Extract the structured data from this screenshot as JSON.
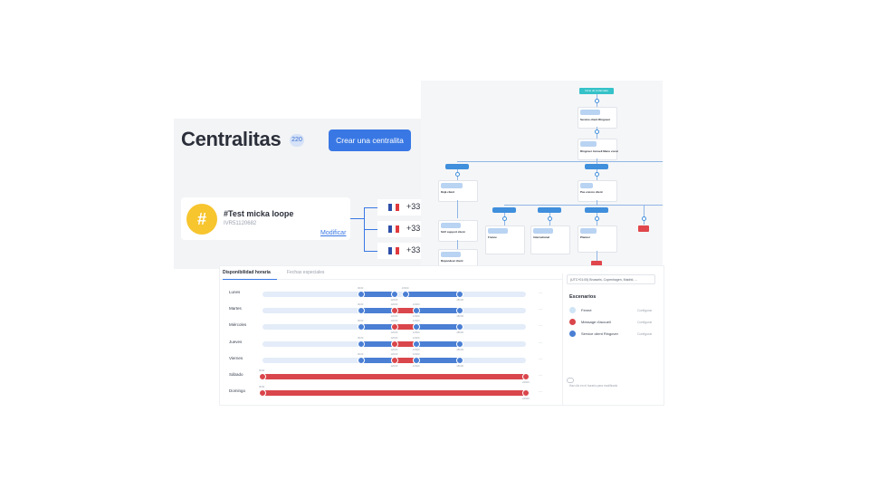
{
  "centralitas": {
    "title": "Centralitas",
    "count": "220",
    "create_button": "Crear una centralita",
    "item": {
      "avatar_symbol": "#",
      "name": "#Test micka loope",
      "id": "IVR51120682",
      "modify_link": "Modificar"
    },
    "numbers": [
      "+33",
      "+33",
      "+33"
    ]
  },
  "flow": {
    "start_label": "Inicio de la llamada",
    "nodes": [
      {
        "title": "Service client Ringover"
      },
      {
        "title": "Ringover Accueil Menu vocal"
      },
      {
        "title": "Déjà client"
      },
      {
        "title": "Pas encore client"
      },
      {
        "title": "SAV support client"
      },
      {
        "title": "France"
      },
      {
        "title": "International"
      },
      {
        "title": "Planner"
      },
      {
        "title": "Répondeur client"
      }
    ]
  },
  "schedule": {
    "tabs": [
      "Disponibilidad horaria",
      "Fechas especiales"
    ],
    "timezone": "(UTC+01:00) Brussels, Copenhagen, Madrid, ...",
    "scenarios_title": "Escenarios",
    "scenarios": [
      {
        "name": "Fermé",
        "color": "#cfe4f5",
        "action": "Configurar"
      },
      {
        "name": "Message d'accueil",
        "color": "#d9464b",
        "action": "Configurar"
      },
      {
        "name": "Service client Ringover",
        "color": "#4a7fd4",
        "action": "Configurar"
      }
    ],
    "hint": "Haz clic en el horario para modificarlo",
    "more": "...",
    "days": [
      {
        "name": "Lunes",
        "segments": [
          {
            "from": "9h00",
            "to": "12h00",
            "scenario": 2
          },
          {
            "from": "13h00",
            "to": "18h00",
            "scenario": 2
          }
        ]
      },
      {
        "name": "Martes",
        "segments": [
          {
            "from": "9h00",
            "to": "12h00",
            "scenario": 2
          },
          {
            "from": "12h00",
            "to": "14h00",
            "scenario": 1
          },
          {
            "from": "14h00",
            "to": "18h00",
            "scenario": 2
          }
        ]
      },
      {
        "name": "Miércoles",
        "segments": [
          {
            "from": "9h00",
            "to": "12h00",
            "scenario": 2
          },
          {
            "from": "12h00",
            "to": "14h00",
            "scenario": 1
          },
          {
            "from": "14h00",
            "to": "18h00",
            "scenario": 2
          }
        ]
      },
      {
        "name": "Jueves",
        "segments": [
          {
            "from": "9h00",
            "to": "12h00",
            "scenario": 2
          },
          {
            "from": "12h00",
            "to": "14h00",
            "scenario": 1
          },
          {
            "from": "14h00",
            "to": "18h00",
            "scenario": 2
          }
        ]
      },
      {
        "name": "Viernes",
        "segments": [
          {
            "from": "9h00",
            "to": "12h00",
            "scenario": 2
          },
          {
            "from": "12h00",
            "to": "14h00",
            "scenario": 1
          },
          {
            "from": "14h00",
            "to": "18h00",
            "scenario": 2
          }
        ]
      },
      {
        "name": "Sábado",
        "segments": [
          {
            "from": "0h00",
            "to": "24h00",
            "scenario": 1
          }
        ]
      },
      {
        "name": "Domingo",
        "segments": [
          {
            "from": "0h00",
            "to": "24h00",
            "scenario": 1
          }
        ]
      }
    ]
  }
}
